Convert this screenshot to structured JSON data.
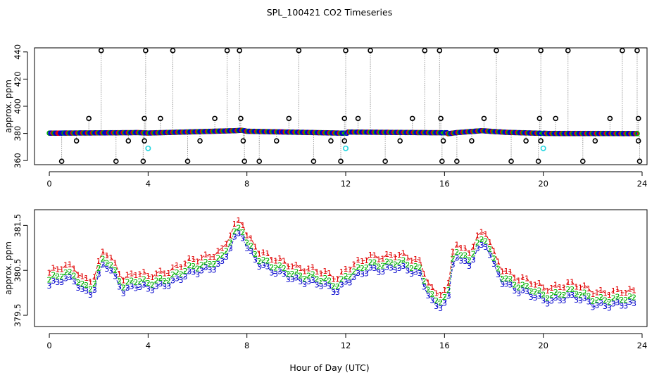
{
  "title": "SPL_100421  CO2 Timeseries",
  "xlabel": "Hour of Day (UTC)",
  "colors": {
    "series1": "#e00000",
    "series2": "#00b000",
    "series3": "#0000cc",
    "outlier": "#000000",
    "flag": "#22d6e0",
    "connector": "#9a9a9a"
  },
  "chart_data": [
    {
      "type": "scatter",
      "panel": "top",
      "ylabel": "approx. ppm",
      "xlim": [
        -0.6,
        24.2
      ],
      "ylim": [
        357,
        443
      ],
      "xticks": [
        0,
        4,
        8,
        12,
        16,
        20,
        24
      ],
      "xtick_labels": [
        "0",
        "4",
        "8",
        "12",
        "16",
        "20",
        "24"
      ],
      "yticks": [
        360,
        380,
        400,
        420,
        440
      ],
      "ytick_labels": [
        "360",
        "380",
        "400",
        "420",
        "440"
      ],
      "baseline_segments": [
        {
          "x": [
            0.0,
            2.0,
            3.6,
            4.0,
            7.5,
            7.8,
            8.0,
            11.9
          ],
          "y": [
            380.2,
            380.4,
            380.6,
            380.3,
            382.0,
            382.3,
            381.6,
            380.2
          ]
        },
        {
          "x": [
            12.0,
            15.9
          ],
          "y": [
            381.0,
            380.5
          ]
        },
        {
          "x": [
            16.0,
            16.5,
            17.5,
            18.5,
            19.9
          ],
          "y": [
            379.5,
            380.6,
            382.0,
            380.8,
            380.1
          ]
        },
        {
          "x": [
            20.0,
            23.8
          ],
          "y": [
            380.0,
            379.9
          ]
        }
      ],
      "outliers_high": [
        2.1,
        3.9,
        5.0,
        7.2,
        7.7,
        10.1,
        12.0,
        13.0,
        15.2,
        15.8,
        18.1,
        19.9,
        21.0,
        23.2,
        23.8
      ],
      "outliers_low": [
        0.5,
        2.7,
        3.8,
        5.6,
        7.9,
        8.5,
        10.7,
        11.8,
        13.6,
        15.9,
        16.5,
        18.7,
        19.8,
        21.6,
        23.9
      ],
      "outliers_mid_high": [
        1.6,
        3.85,
        4.5,
        6.7,
        7.75,
        9.7,
        11.95,
        12.5,
        14.7,
        15.85,
        17.6,
        19.85,
        20.5,
        22.7,
        23.85
      ],
      "outliers_mid_low": [
        1.1,
        3.2,
        3.85,
        6.1,
        7.85,
        9.2,
        11.4,
        11.95,
        14.2,
        15.95,
        17.1,
        19.3,
        19.9,
        22.1,
        23.85
      ],
      "flagged_points": [
        {
          "x": 4.0,
          "y": 369
        },
        {
          "x": 12.0,
          "y": 369
        },
        {
          "x": 20.0,
          "y": 369
        }
      ]
    },
    {
      "type": "line",
      "panel": "bottom",
      "ylabel": "approx. ppm",
      "xlim": [
        -0.6,
        24.2
      ],
      "ylim": [
        379.25,
        381.85
      ],
      "xticks": [
        0,
        4,
        8,
        12,
        16,
        20,
        24
      ],
      "xtick_labels": [
        "0",
        "4",
        "8",
        "12",
        "16",
        "20",
        "24"
      ],
      "yticks": [
        379.5,
        380.5,
        381.5
      ],
      "ytick_labels": [
        "379.5",
        "380.5",
        "381.5"
      ],
      "markers": [
        "1",
        "2",
        "3"
      ],
      "x_step": 0.1667,
      "anchors": {
        "x": [
          0.0,
          0.5,
          1.0,
          1.3,
          1.8,
          2.2,
          2.5,
          3.0,
          3.5,
          4.0,
          5.0,
          6.0,
          7.0,
          7.6,
          7.8,
          8.0,
          8.5,
          9.0,
          10.0,
          11.0,
          11.7,
          12.0,
          12.5,
          13.0,
          14.0,
          15.0,
          15.5,
          15.7,
          16.0,
          16.2,
          16.4,
          16.6,
          17.0,
          17.4,
          17.7,
          18.0,
          18.3,
          19.0,
          20.0,
          21.0,
          22.0,
          23.0,
          23.8
        ],
        "y1": [
          380.45,
          380.55,
          380.6,
          380.35,
          380.3,
          380.95,
          380.75,
          380.35,
          380.45,
          380.35,
          380.55,
          380.75,
          380.95,
          381.55,
          381.62,
          381.3,
          380.95,
          380.75,
          380.6,
          380.45,
          380.35,
          380.55,
          380.65,
          380.8,
          380.85,
          380.7,
          380.1,
          379.95,
          380.05,
          380.15,
          381.25,
          381.0,
          380.95,
          381.3,
          381.35,
          380.85,
          380.55,
          380.35,
          380.1,
          380.2,
          380.05,
          380.0,
          380.05
        ]
      },
      "offsets": {
        "series1": 0.0,
        "series2": -0.16,
        "series3": -0.29
      }
    }
  ]
}
